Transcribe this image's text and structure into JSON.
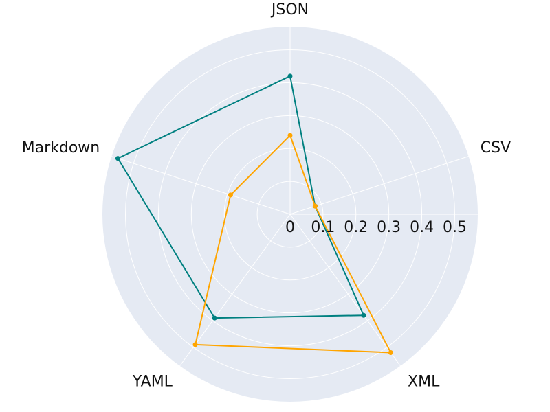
{
  "chart_data": {
    "type": "radar",
    "categories": [
      "JSON",
      "CSV",
      "XML",
      "YAML",
      "Markdown"
    ],
    "radial_ticks": [
      "0",
      "0.1",
      "0.2",
      "0.3",
      "0.4",
      "0.5"
    ],
    "rmax": 0.57,
    "grid": true,
    "series": [
      {
        "values": [
          0.42,
          0.08,
          0.38,
          0.39,
          0.55
        ],
        "color": "#008080"
      },
      {
        "values": [
          0.24,
          0.08,
          0.52,
          0.49,
          0.19
        ],
        "color": "#ffa500"
      }
    ],
    "colors": {
      "background": "#e5eaf3",
      "grid": "#ffffff",
      "text": "#111111"
    }
  }
}
